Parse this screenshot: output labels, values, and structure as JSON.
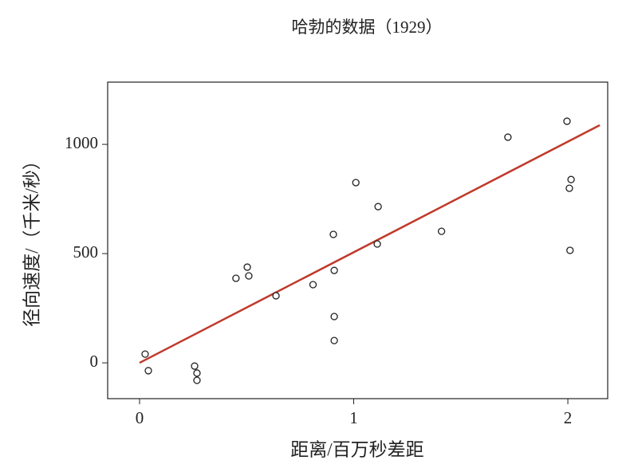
{
  "chart_data": {
    "type": "scatter",
    "title": "哈勃的数据（1929）",
    "xlabel": "距离/百万秒差距",
    "ylabel": "径向速度/（千米/秒）",
    "series": [
      {
        "x": [
          0.026,
          0.041,
          0.257,
          0.268,
          0.268,
          0.45,
          0.503,
          0.51,
          0.637,
          0.81,
          0.905,
          0.909,
          0.909,
          0.909,
          1.01,
          1.114,
          1.11,
          1.41,
          1.72,
          1.996,
          2.015,
          2.007,
          2.01
        ],
        "values": [
          40,
          -36,
          -15,
          -47,
          -80,
          387,
          438,
          398,
          307,
          358,
          588,
          423,
          212,
          102,
          825,
          715,
          544,
          602,
          1033,
          1106,
          839,
          799,
          515
        ],
        "color": "#222222"
      }
    ],
    "fit_line": {
      "x": [
        0,
        2.149
      ],
      "values": [
        0,
        1088
      ],
      "color": "#c0392b"
    },
    "xlim": [
      -0.149,
      2.186
    ],
    "ylim": [
      -164,
      1285
    ],
    "xticks": [
      0,
      1,
      2
    ],
    "yticks": [
      0,
      500,
      1000
    ]
  }
}
